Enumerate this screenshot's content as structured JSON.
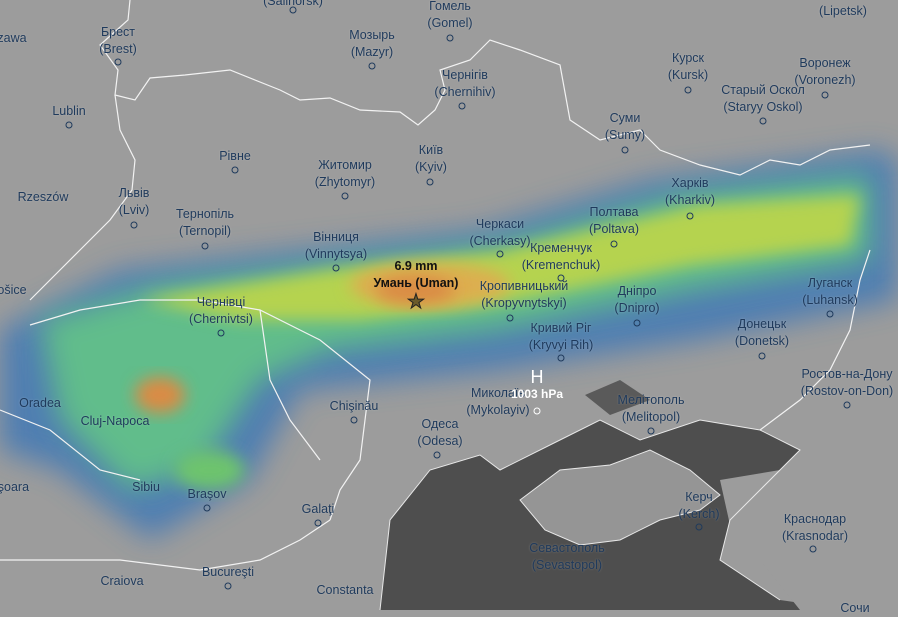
{
  "map": {
    "layer": "precipitation",
    "colors": {
      "land": "#9c9c9c",
      "sea": "#4e4e4e",
      "heavy": "#e08a3c",
      "medium": "#d6d640",
      "light": "#5cc85c",
      "trace": "#4a8ab8",
      "border": "#ffffff",
      "label": "#1f3a5c"
    },
    "highlight": {
      "value": "6.9 mm",
      "name": "Умань (Uman)",
      "icon": "star-icon"
    },
    "pressure_center": {
      "symbol": "H",
      "value": "1003 hPa"
    },
    "cities": [
      {
        "local": "",
        "latin": "(Salihorsk)"
      },
      {
        "local": "Гомель",
        "latin": "(Gomel)"
      },
      {
        "local": "",
        "latin": "(Lipetsk)"
      },
      {
        "local": "zawa",
        "latin": ""
      },
      {
        "local": "Брест",
        "latin": "(Brest)"
      },
      {
        "local": "Мозырь",
        "latin": "(Mazyr)"
      },
      {
        "local": "Чернігів",
        "latin": "(Chernihiv)"
      },
      {
        "local": "Курск",
        "latin": "(Kursk)"
      },
      {
        "local": "Воронеж",
        "latin": "(Voronezh)"
      },
      {
        "local": "Старый Оскол",
        "latin": "(Staryy Oskol)"
      },
      {
        "local": "Lublin",
        "latin": ""
      },
      {
        "local": "Суми",
        "latin": "(Sumy)"
      },
      {
        "local": "Київ",
        "latin": "(Kyiv)"
      },
      {
        "local": "Рівне",
        "latin": ""
      },
      {
        "local": "Житомир",
        "latin": "(Zhytomyr)"
      },
      {
        "local": "Rzeszów",
        "latin": ""
      },
      {
        "local": "Львів",
        "latin": "(Lviv)"
      },
      {
        "local": "Тернопіль",
        "latin": "(Ternopil)"
      },
      {
        "local": "Харків",
        "latin": "(Kharkiv)"
      },
      {
        "local": "Полтава",
        "latin": "(Poltava)"
      },
      {
        "local": "Черкаси",
        "latin": "(Cherkasy)"
      },
      {
        "local": "Вінниця",
        "latin": "(Vinnytsya)"
      },
      {
        "local": "Кременчук",
        "latin": "(Kremenchuk)"
      },
      {
        "local": "Кропивницький",
        "latin": "(Kropyvnytskyi)"
      },
      {
        "local": "Дніпро",
        "latin": "(Dnipro)"
      },
      {
        "local": "Луганск",
        "latin": "(Luhansk)"
      },
      {
        "local": "Чернівці",
        "latin": "(Chernivtsi)"
      },
      {
        "local": "ošice",
        "latin": ""
      },
      {
        "local": "Донецьк",
        "latin": "(Donetsk)"
      },
      {
        "local": "Кривий Ріг",
        "latin": "(Kryvyi Rih)"
      },
      {
        "local": "Ростов-на-Дону",
        "latin": "(Rostov-on-Don)"
      },
      {
        "local": "Oradea",
        "latin": ""
      },
      {
        "local": "Миколаїв",
        "latin": "(Mykolayiv)"
      },
      {
        "local": "Мелітополь",
        "latin": "(Melitopol)"
      },
      {
        "local": "Cluj-Napoca",
        "latin": ""
      },
      {
        "local": "Chişinău",
        "latin": ""
      },
      {
        "local": "Одеса",
        "latin": "(Odesa)"
      },
      {
        "local": "Sibiu",
        "latin": ""
      },
      {
        "local": "Braşov",
        "latin": ""
      },
      {
        "local": "Керч",
        "latin": "(Kerch)"
      },
      {
        "local": "Краснодар",
        "latin": "(Krasnodar)"
      },
      {
        "local": "Galaţi",
        "latin": ""
      },
      {
        "local": "Севастополь",
        "latin": "(Sevastopol)"
      },
      {
        "local": "Craiova",
        "latin": ""
      },
      {
        "local": "Bucureşti",
        "latin": ""
      },
      {
        "local": "Constanta",
        "latin": ""
      },
      {
        "local": "işoara",
        "latin": ""
      },
      {
        "local": "Сочи",
        "latin": ""
      }
    ]
  }
}
